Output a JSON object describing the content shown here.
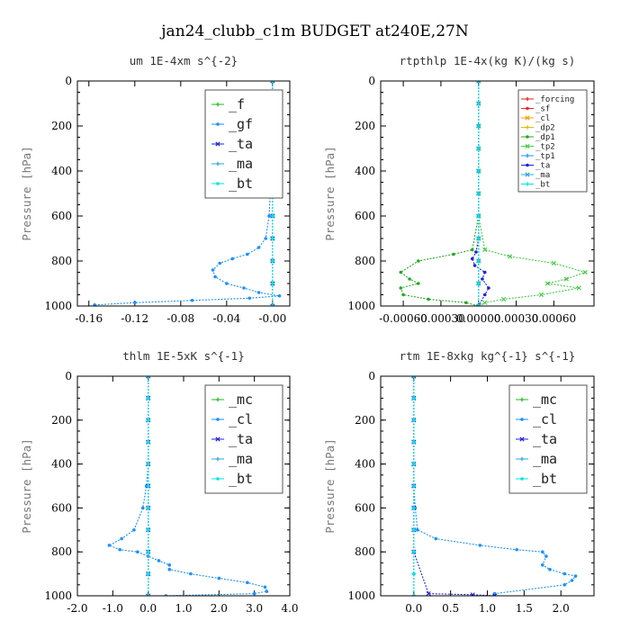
{
  "suptitle": "jan24_clubb_c1m  BUDGET at240E,27N",
  "chart_data": [
    {
      "type": "line",
      "title": "um  1E-4xm s^{-2}",
      "ylabel": "Pressure [hPa]",
      "xlim": [
        -0.17,
        0.015
      ],
      "ylim": [
        1000,
        0
      ],
      "xticks": [
        -0.16,
        -0.12,
        -0.08,
        -0.04,
        0.0
      ],
      "xticklabels": [
        "-0.16",
        "-0.12",
        "-0.08",
        "-0.04",
        "-0.00"
      ],
      "yticks": [
        0,
        200,
        400,
        600,
        800,
        1000
      ],
      "yticklabels": [
        "0",
        "200",
        "400",
        "600",
        "800",
        "1000"
      ],
      "legend_position": "top-right",
      "legend_size": "large",
      "series": [
        {
          "name": "_f",
          "color": "#22bb22",
          "x": [
            0,
            0,
            0,
            0,
            0,
            0,
            0,
            0,
            0,
            0,
            0
          ],
          "y": [
            0,
            100,
            200,
            300,
            400,
            500,
            600,
            700,
            800,
            900,
            1000
          ]
        },
        {
          "name": "_gf",
          "color": "#1e90ff",
          "x": [
            0,
            0,
            0,
            0,
            -0.001,
            -0.002,
            -0.003,
            -0.006,
            -0.012,
            -0.022,
            -0.035,
            -0.046,
            -0.052,
            -0.05,
            -0.04,
            -0.025,
            -0.012,
            0.006,
            -0.02,
            -0.07,
            -0.12,
            -0.155
          ],
          "y": [
            0,
            100,
            200,
            300,
            400,
            500,
            600,
            700,
            740,
            770,
            790,
            810,
            840,
            870,
            900,
            920,
            940,
            955,
            965,
            975,
            985,
            995
          ]
        },
        {
          "name": "_ta",
          "color": "#2020dd",
          "x": [
            0,
            0,
            0,
            0,
            0,
            0,
            0,
            0,
            0,
            0,
            0
          ],
          "y": [
            0,
            100,
            200,
            300,
            400,
            500,
            600,
            700,
            800,
            900,
            1000
          ]
        },
        {
          "name": "_ma",
          "color": "#2aa8d8",
          "x": [
            0,
            0,
            0,
            0,
            0,
            0,
            0,
            0,
            0,
            0,
            0
          ],
          "y": [
            0,
            100,
            200,
            300,
            400,
            500,
            600,
            700,
            800,
            900,
            1000
          ]
        },
        {
          "name": "_bt",
          "color": "#00e5e5",
          "x": [
            0,
            0,
            0,
            0,
            0,
            0,
            0,
            0,
            0,
            0,
            0
          ],
          "y": [
            0,
            100,
            200,
            300,
            400,
            500,
            600,
            700,
            800,
            900,
            1000
          ]
        }
      ]
    },
    {
      "type": "line",
      "title": "rtpthlp  1E-4x(kg K)/(kg s)",
      "ylabel": "Pressure [hPa]",
      "xlim": [
        -0.00078,
        0.00092
      ],
      "ylim": [
        1000,
        0
      ],
      "xticks": [
        -0.0006,
        -0.0003,
        0.0,
        0.0003,
        0.0006
      ],
      "xticklabels": [
        "-0.00060",
        "-0.00030",
        "0.00000",
        "0.00030",
        "0.00060"
      ],
      "yticks": [
        0,
        200,
        400,
        600,
        800,
        1000
      ],
      "yticklabels": [
        "0",
        "200",
        "400",
        "600",
        "800",
        "1000"
      ],
      "legend_position": "top-right",
      "legend_size": "small",
      "series": [
        {
          "name": "_forcing",
          "color": "#dd2222",
          "x": [
            0,
            0,
            0,
            0,
            0,
            0,
            0,
            0,
            0,
            0,
            0
          ],
          "y": [
            0,
            100,
            200,
            300,
            400,
            500,
            600,
            700,
            800,
            900,
            1000
          ]
        },
        {
          "name": "_sf",
          "color": "#ff2222",
          "x": [
            0,
            0,
            0,
            0,
            0,
            0,
            0,
            0,
            0,
            0,
            0
          ],
          "y": [
            0,
            100,
            200,
            300,
            400,
            500,
            600,
            700,
            800,
            900,
            1000
          ]
        },
        {
          "name": "_cl",
          "color": "#ff9900",
          "x": [
            0,
            0,
            0,
            0,
            0,
            0,
            0,
            0,
            0,
            0,
            0
          ],
          "y": [
            0,
            100,
            200,
            300,
            400,
            500,
            600,
            700,
            800,
            900,
            1000
          ]
        },
        {
          "name": "_dp2",
          "color": "#ddbb00",
          "x": [
            0,
            0,
            0,
            0,
            0,
            0,
            0,
            0,
            0,
            0,
            0
          ],
          "y": [
            0,
            100,
            200,
            300,
            400,
            500,
            600,
            700,
            800,
            900,
            1000
          ]
        },
        {
          "name": "_dp1",
          "color": "#22aa22",
          "x": [
            0,
            0,
            0,
            0,
            -5e-05,
            -0.0002,
            -0.00048,
            -0.00062,
            -0.00055,
            -0.00048,
            -0.00062,
            -0.0006,
            -0.0004,
            -0.0001,
            0
          ],
          "y": [
            0,
            200,
            400,
            600,
            750,
            770,
            800,
            850,
            880,
            900,
            920,
            950,
            970,
            985,
            1000
          ]
        },
        {
          "name": "_tp2",
          "color": "#44cc44",
          "x": [
            0,
            0,
            0,
            0,
            5e-05,
            0.00025,
            0.0006,
            0.00085,
            0.0007,
            0.00055,
            0.0008,
            0.0005,
            0.0002,
            5e-05,
            0
          ],
          "y": [
            0,
            200,
            400,
            600,
            750,
            780,
            810,
            850,
            880,
            900,
            920,
            950,
            970,
            985,
            1000
          ]
        },
        {
          "name": "_tp1",
          "color": "#1e90ff",
          "x": [
            0,
            0,
            0,
            0,
            0,
            0,
            0,
            0,
            0,
            0,
            0
          ],
          "y": [
            0,
            100,
            200,
            300,
            400,
            500,
            600,
            700,
            800,
            900,
            1000
          ]
        },
        {
          "name": "_ta",
          "color": "#2020dd",
          "x": [
            0,
            0,
            0,
            0,
            -2e-05,
            -5e-05,
            -3e-05,
            5e-05,
            3e-05,
            8e-05,
            5e-05,
            0
          ],
          "y": [
            0,
            200,
            400,
            700,
            760,
            790,
            820,
            850,
            880,
            920,
            950,
            1000
          ]
        },
        {
          "name": "_ma",
          "color": "#2aa8d8",
          "x": [
            0,
            0,
            0,
            0,
            0,
            0,
            0,
            0,
            0,
            0,
            0
          ],
          "y": [
            0,
            100,
            200,
            300,
            400,
            500,
            600,
            700,
            800,
            900,
            1000
          ]
        },
        {
          "name": "_bt",
          "color": "#00e5e5",
          "x": [
            0,
            0,
            0,
            0,
            0,
            0,
            0,
            0,
            0,
            0,
            0
          ],
          "y": [
            0,
            100,
            200,
            300,
            400,
            500,
            600,
            700,
            800,
            900,
            1000
          ]
        }
      ]
    },
    {
      "type": "line",
      "title": "thlm  1E-5xK s^{-1}",
      "ylabel": "Pressure [hPa]",
      "xlim": [
        -2.0,
        4.0
      ],
      "ylim": [
        1000,
        0
      ],
      "xticks": [
        -2,
        -1,
        0,
        1,
        2,
        3,
        4
      ],
      "xticklabels": [
        "-2.0",
        "-1.0",
        "0.0",
        "1.0",
        "2.0",
        "3.0",
        "4.0"
      ],
      "yticks": [
        0,
        200,
        400,
        600,
        800,
        1000
      ],
      "yticklabels": [
        "0",
        "200",
        "400",
        "600",
        "800",
        "1000"
      ],
      "legend_position": "top-right",
      "legend_size": "large",
      "series": [
        {
          "name": "_mc",
          "color": "#22bb22",
          "x": [
            0,
            0,
            0,
            0,
            0,
            0,
            0,
            0,
            0,
            0,
            0
          ],
          "y": [
            0,
            100,
            200,
            300,
            400,
            500,
            600,
            700,
            800,
            900,
            1000
          ]
        },
        {
          "name": "_cl",
          "color": "#1e90ff",
          "x": [
            0,
            0,
            0,
            0,
            0,
            -0.05,
            -0.15,
            -0.4,
            -0.75,
            -1.1,
            -0.8,
            -0.3,
            0,
            0.3,
            0.6,
            0.6,
            1.2,
            2.0,
            2.8,
            3.3,
            3.35,
            3.0,
            0.5
          ],
          "y": [
            0,
            100,
            200,
            300,
            400,
            500,
            600,
            700,
            740,
            770,
            790,
            800,
            820,
            840,
            860,
            880,
            900,
            920,
            940,
            960,
            980,
            990,
            1000
          ]
        },
        {
          "name": "_ta",
          "color": "#2020dd",
          "x": [
            0,
            0,
            0,
            0,
            0,
            0,
            0,
            0,
            0,
            0,
            0
          ],
          "y": [
            0,
            100,
            200,
            300,
            400,
            500,
            600,
            700,
            800,
            900,
            1000
          ]
        },
        {
          "name": "_ma",
          "color": "#2aa8d8",
          "x": [
            0,
            0,
            0,
            0,
            0,
            0,
            0,
            0,
            0,
            0,
            0
          ],
          "y": [
            0,
            100,
            200,
            300,
            400,
            500,
            600,
            700,
            800,
            900,
            1000
          ]
        },
        {
          "name": "_bt",
          "color": "#00e5e5",
          "x": [
            0,
            0,
            0,
            0,
            0,
            0,
            0,
            0,
            0,
            0,
            0
          ],
          "y": [
            0,
            100,
            200,
            300,
            400,
            500,
            600,
            700,
            800,
            900,
            1000
          ]
        }
      ]
    },
    {
      "type": "line",
      "title": "rtm  1E-8xkg kg^{-1} s^{-1}",
      "ylabel": "Pressure [hPa]",
      "xlim": [
        -0.45,
        2.45
      ],
      "ylim": [
        1000,
        0
      ],
      "xticks": [
        0,
        0.5,
        1.0,
        1.5,
        2.0
      ],
      "xticklabels": [
        "0.0",
        "0.5",
        "1.0",
        "1.5",
        "2.0"
      ],
      "yticks": [
        0,
        200,
        400,
        600,
        800,
        1000
      ],
      "yticklabels": [
        "0",
        "200",
        "400",
        "600",
        "800",
        "1000"
      ],
      "legend_position": "top-right",
      "legend_size": "large",
      "series": [
        {
          "name": "_mc",
          "color": "#22bb22",
          "x": [
            0,
            0,
            0,
            0,
            0,
            0,
            0,
            0,
            0,
            0,
            0
          ],
          "y": [
            0,
            100,
            200,
            300,
            400,
            500,
            600,
            700,
            800,
            900,
            1000
          ]
        },
        {
          "name": "_cl",
          "color": "#1e90ff",
          "x": [
            0,
            0,
            0,
            0,
            0,
            0,
            0.02,
            0.05,
            0.3,
            0.9,
            1.4,
            1.75,
            1.8,
            1.75,
            1.85,
            2.05,
            2.2,
            2.15,
            2.05,
            1.1,
            1.1
          ],
          "y": [
            0,
            100,
            200,
            300,
            400,
            500,
            600,
            700,
            740,
            770,
            790,
            800,
            820,
            860,
            880,
            900,
            910,
            930,
            950,
            990,
            1000
          ]
        },
        {
          "name": "_ta",
          "color": "#2020dd",
          "x": [
            0,
            0,
            0,
            0,
            0,
            0,
            0,
            0,
            0,
            0.2,
            0.8,
            1.1
          ],
          "y": [
            0,
            100,
            200,
            300,
            400,
            500,
            600,
            700,
            800,
            990,
            995,
            1000
          ]
        },
        {
          "name": "_ma",
          "color": "#2aa8d8",
          "x": [
            0,
            0,
            0,
            0,
            0,
            0,
            0,
            0,
            0,
            0,
            0
          ],
          "y": [
            0,
            100,
            200,
            300,
            400,
            500,
            600,
            700,
            800,
            900,
            1000
          ]
        },
        {
          "name": "_bt",
          "color": "#00e5e5",
          "x": [
            0,
            0,
            0,
            0,
            0,
            0,
            0,
            0,
            0,
            0,
            0
          ],
          "y": [
            0,
            100,
            200,
            300,
            400,
            500,
            600,
            700,
            800,
            900,
            1000
          ]
        }
      ]
    }
  ]
}
